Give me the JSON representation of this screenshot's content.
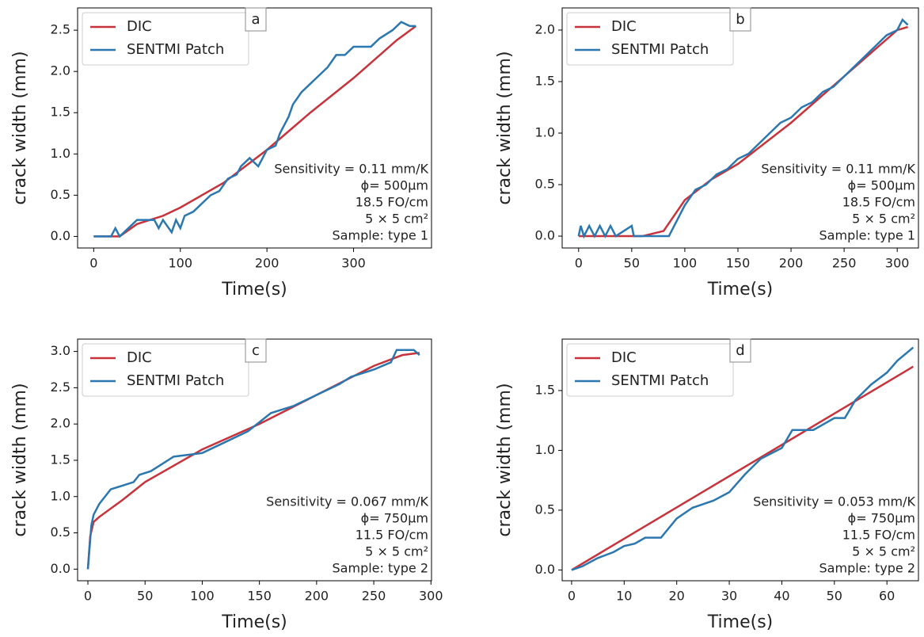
{
  "chart_data": [
    {
      "type": "line",
      "panel_label": "a",
      "xlabel": "Time(s)",
      "ylabel": "crack width (mm)",
      "xlim": [
        -18.6,
        390
      ],
      "ylim": [
        -0.14,
        2.77
      ],
      "xticks": [
        0,
        100,
        200,
        300
      ],
      "yticks": [
        {
          "value": 0,
          "label": "0.0"
        },
        0.5,
        {
          "value": 1,
          "label": "1.0"
        },
        1.5,
        {
          "value": 2,
          "label": "2.0"
        },
        2.5
      ],
      "legend": "upper left",
      "annotation": [
        "Sensitivity = 0.11 mm/K",
        "ϕ= 500µm",
        "18.5 FO/cm",
        "5 × 5 cm²",
        "Sample: type 1"
      ],
      "series": [
        {
          "name": "DIC",
          "color": "#c8323a",
          "x": [
            0,
            30,
            50,
            80,
            100,
            150,
            200,
            250,
            300,
            350,
            372
          ],
          "values": [
            0,
            0,
            0.15,
            0.25,
            0.35,
            0.65,
            1.05,
            1.5,
            1.92,
            2.38,
            2.55
          ]
        },
        {
          "name": "SENTMI Patch",
          "color": "#2b77b0",
          "x": [
            0,
            20,
            25,
            30,
            45,
            50,
            70,
            75,
            80,
            90,
            95,
            100,
            105,
            115,
            125,
            135,
            145,
            155,
            165,
            170,
            180,
            190,
            200,
            210,
            215,
            225,
            230,
            240,
            250,
            260,
            270,
            280,
            290,
            300,
            320,
            330,
            345,
            355,
            365,
            372
          ],
          "values": [
            0,
            0,
            0.1,
            0,
            0.15,
            0.2,
            0.2,
            0.1,
            0.2,
            0.05,
            0.2,
            0.1,
            0.25,
            0.3,
            0.4,
            0.5,
            0.55,
            0.7,
            0.75,
            0.85,
            0.95,
            0.85,
            1.05,
            1.1,
            1.25,
            1.45,
            1.6,
            1.75,
            1.85,
            1.95,
            2.05,
            2.2,
            2.2,
            2.3,
            2.3,
            2.4,
            2.5,
            2.6,
            2.55,
            2.55
          ]
        }
      ]
    },
    {
      "type": "line",
      "panel_label": "b",
      "xlabel": "Time(s)",
      "ylabel": "crack width (mm)",
      "xlim": [
        -15.5,
        320
      ],
      "ylim": [
        -0.115,
        2.215
      ],
      "xticks": [
        0,
        50,
        100,
        150,
        200,
        250,
        300
      ],
      "yticks": [
        {
          "value": 0,
          "label": "0.0"
        },
        0.5,
        {
          "value": 1,
          "label": "1.0"
        },
        1.5,
        {
          "value": 2,
          "label": "2.0"
        }
      ],
      "legend": "upper left",
      "annotation": [
        "Sensitivity = 0.11 mm/K",
        "ϕ= 500µm",
        "18.5 FO/cm",
        "5 × 5 cm²",
        "Sample: type 1"
      ],
      "series": [
        {
          "name": "DIC",
          "color": "#c8323a",
          "x": [
            0,
            60,
            80,
            90,
            100,
            125,
            150,
            200,
            250,
            300,
            310
          ],
          "values": [
            0,
            0,
            0.05,
            0.2,
            0.35,
            0.55,
            0.7,
            1.1,
            1.55,
            2.0,
            2.03
          ]
        },
        {
          "name": "SENTMI Patch",
          "color": "#2b77b0",
          "x": [
            0,
            2,
            5,
            10,
            15,
            20,
            25,
            30,
            35,
            50,
            52,
            85,
            90,
            95,
            100,
            110,
            120,
            130,
            140,
            150,
            160,
            170,
            180,
            190,
            200,
            210,
            220,
            230,
            240,
            250,
            260,
            270,
            280,
            290,
            300,
            305,
            310
          ],
          "values": [
            0,
            0.1,
            0,
            0.1,
            0,
            0.1,
            0,
            0.1,
            0,
            0.1,
            0,
            0,
            0.1,
            0.2,
            0.3,
            0.45,
            0.5,
            0.6,
            0.65,
            0.75,
            0.8,
            0.9,
            1.0,
            1.1,
            1.15,
            1.25,
            1.3,
            1.4,
            1.45,
            1.55,
            1.65,
            1.75,
            1.85,
            1.95,
            2.0,
            2.1,
            2.05
          ]
        }
      ]
    },
    {
      "type": "line",
      "panel_label": "c",
      "xlabel": "Time(s)",
      "ylabel": "crack width (mm)",
      "xlim": [
        -9,
        300.5
      ],
      "ylim": [
        -0.16,
        3.17
      ],
      "xticks": [
        0,
        50,
        100,
        150,
        200,
        250,
        300
      ],
      "yticks": [
        {
          "value": 0,
          "label": "0.0"
        },
        0.5,
        {
          "value": 1,
          "label": "1.0"
        },
        1.5,
        {
          "value": 2,
          "label": "2.0"
        },
        2.5,
        {
          "value": 3,
          "label": "3.0"
        }
      ],
      "legend": "upper left",
      "annotation": [
        "Sensitivity = 0.067 mm/K",
        "ϕ= 750µm",
        "11.5 FO/cm",
        "5 × 5 cm²",
        "Sample: type 2"
      ],
      "series": [
        {
          "name": "DIC",
          "color": "#c8323a",
          "x": [
            0,
            2,
            5,
            10,
            30,
            50,
            100,
            150,
            200,
            250,
            275,
            290
          ],
          "values": [
            0,
            0.45,
            0.65,
            0.72,
            0.95,
            1.2,
            1.65,
            2.0,
            2.4,
            2.8,
            2.95,
            2.98
          ]
        },
        {
          "name": "SENTMI Patch",
          "color": "#2b77b0",
          "x": [
            0,
            3,
            5,
            10,
            15,
            20,
            30,
            40,
            45,
            55,
            65,
            75,
            100,
            120,
            140,
            160,
            180,
            200,
            220,
            230,
            250,
            265,
            270,
            285,
            290
          ],
          "values": [
            0,
            0.6,
            0.75,
            0.9,
            1.0,
            1.1,
            1.15,
            1.2,
            1.3,
            1.35,
            1.45,
            1.55,
            1.6,
            1.75,
            1.9,
            2.15,
            2.25,
            2.4,
            2.55,
            2.65,
            2.75,
            2.85,
            3.02,
            3.02,
            2.95
          ]
        }
      ]
    },
    {
      "type": "line",
      "panel_label": "d",
      "xlabel": "Time(s)",
      "ylabel": "crack width (mm)",
      "xlim": [
        -1.8,
        66
      ],
      "ylim": [
        -0.09,
        1.93
      ],
      "xticks": [
        0,
        10,
        20,
        30,
        40,
        50,
        60
      ],
      "yticks": [
        {
          "value": 0,
          "label": "0.0"
        },
        0.5,
        {
          "value": 1,
          "label": "1.0"
        },
        1.5
      ],
      "legend": "upper left",
      "annotation": [
        "Sensitivity = 0.053 mm/K",
        "ϕ= 750µm",
        "11.5 FO/cm",
        "5 × 5 cm²",
        "Sample: type 2"
      ],
      "series": [
        {
          "name": "DIC",
          "color": "#c8323a",
          "x": [
            0,
            65
          ],
          "values": [
            0,
            1.7
          ]
        },
        {
          "name": "SENTMI Patch",
          "color": "#2b77b0",
          "x": [
            0,
            2,
            5,
            8,
            10,
            12,
            14,
            17,
            20,
            23,
            27,
            30,
            33,
            36,
            40,
            42,
            46,
            50,
            52,
            54,
            57,
            60,
            62,
            65
          ],
          "values": [
            0,
            0.03,
            0.1,
            0.15,
            0.2,
            0.22,
            0.27,
            0.27,
            0.43,
            0.52,
            0.58,
            0.65,
            0.8,
            0.93,
            1.02,
            1.17,
            1.17,
            1.27,
            1.27,
            1.42,
            1.55,
            1.65,
            1.75,
            1.86
          ]
        }
      ]
    }
  ]
}
